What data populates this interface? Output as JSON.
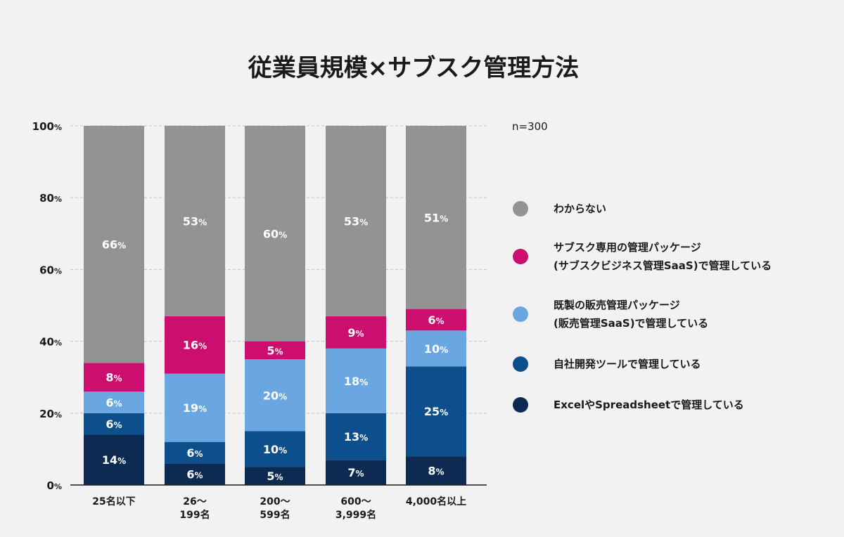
{
  "chart_data": {
    "type": "bar",
    "stacked": true,
    "title": "従業員規模×サブスク管理方法",
    "sample_size": "n=300",
    "categories": [
      [
        "25名以下"
      ],
      [
        "26〜",
        "199名"
      ],
      [
        "200〜",
        "599名"
      ],
      [
        "600〜",
        "3,999名"
      ],
      [
        "4,000名以上"
      ]
    ],
    "ylim": [
      0,
      100
    ],
    "y_ticks": [
      0,
      20,
      40,
      60,
      80,
      100
    ],
    "y_tick_suffix": "%",
    "series": [
      {
        "name": "ExcelやSpreadsheetで管理している",
        "color": "#0d2b52",
        "values": [
          14,
          6,
          5,
          7,
          8
        ]
      },
      {
        "name": "自社開発ツールで管理している",
        "color": "#0d4f8c",
        "values": [
          6,
          6,
          10,
          13,
          25
        ]
      },
      {
        "name": "既製の販売管理パッケージ\n(販売管理SaaS)で管理している",
        "color": "#6aa6df",
        "values": [
          6,
          19,
          20,
          18,
          10
        ]
      },
      {
        "name": "サブスク専用の管理パッケージ\n(サブスクビジネス管理SaaS)で管理している",
        "color": "#cc0e6e",
        "values": [
          8,
          16,
          5,
          9,
          6
        ]
      },
      {
        "name": "わからない",
        "color": "#939393",
        "values": [
          66,
          53,
          60,
          53,
          51
        ]
      }
    ],
    "legend_order": [
      4,
      3,
      2,
      1,
      0
    ],
    "legend_position": "right",
    "grid": true
  }
}
